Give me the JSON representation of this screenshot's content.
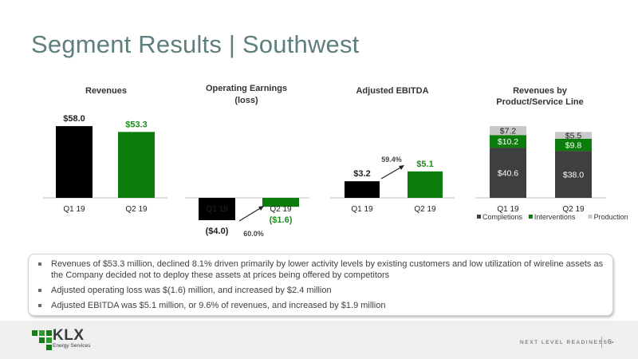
{
  "slide": {
    "title": "Segment Results | Southwest",
    "bullets": [
      "Revenues of $53.3 million, declined 8.1% driven primarily by lower activity levels by existing customers and low utilization of wireline assets as the Company decided not to deploy these assets at prices being offered by competitors",
      "Adjusted operating loss was $(1.6) million, and increased by $2.4 million",
      "Adjusted EBITDA was $5.1 million, or 9.6% of revenues, and increased by $1.9 million"
    ],
    "footer": {
      "logo_text": "KLX",
      "logo_sub": "Energy Services",
      "tagline": "NEXT LEVEL READINESS >",
      "page_number": "6"
    }
  },
  "chart_data": [
    {
      "type": "bar",
      "title": "Revenues",
      "categories": [
        "Q1 19",
        "Q2 19"
      ],
      "values": [
        58.0,
        53.3
      ],
      "labels": [
        "$58.0",
        "$53.3"
      ],
      "colors": [
        "#000000",
        "#0c7d0c"
      ]
    },
    {
      "type": "bar",
      "title": "Operating Earnings (loss)",
      "title_lines": [
        "Operating Earnings",
        "(loss)"
      ],
      "categories": [
        "Q1 19",
        "Q2 19"
      ],
      "values": [
        -4.0,
        -1.6
      ],
      "labels": [
        "($4.0)",
        "($1.6)"
      ],
      "colors": [
        "#000000",
        "#0c7d0c"
      ],
      "annotation": "60.0%"
    },
    {
      "type": "bar",
      "title": "Adjusted EBITDA",
      "categories": [
        "Q1 19",
        "Q2 19"
      ],
      "values": [
        3.2,
        5.1
      ],
      "labels": [
        "$3.2",
        "$5.1"
      ],
      "colors": [
        "#000000",
        "#0c7d0c"
      ],
      "annotation": "59.4%"
    },
    {
      "type": "bar",
      "stacked": true,
      "title": "Revenues by Product/Service Line",
      "title_lines": [
        "Revenues by",
        "Product/Service Line"
      ],
      "categories": [
        "Q1 19",
        "Q2 19"
      ],
      "series": [
        {
          "name": "Completions",
          "values": [
            40.6,
            38.0
          ],
          "labels": [
            "$40.6",
            "$38.0"
          ],
          "color": "#3f3f3f"
        },
        {
          "name": "Interventions",
          "values": [
            10.2,
            9.8
          ],
          "labels": [
            "$10.2",
            "$9.8"
          ],
          "color": "#0c7d0c"
        },
        {
          "name": "Production",
          "values": [
            7.2,
            5.5
          ],
          "labels": [
            "$7.2",
            "$5.5"
          ],
          "color": "#c8c8c8"
        }
      ],
      "legend": "bottom"
    }
  ]
}
